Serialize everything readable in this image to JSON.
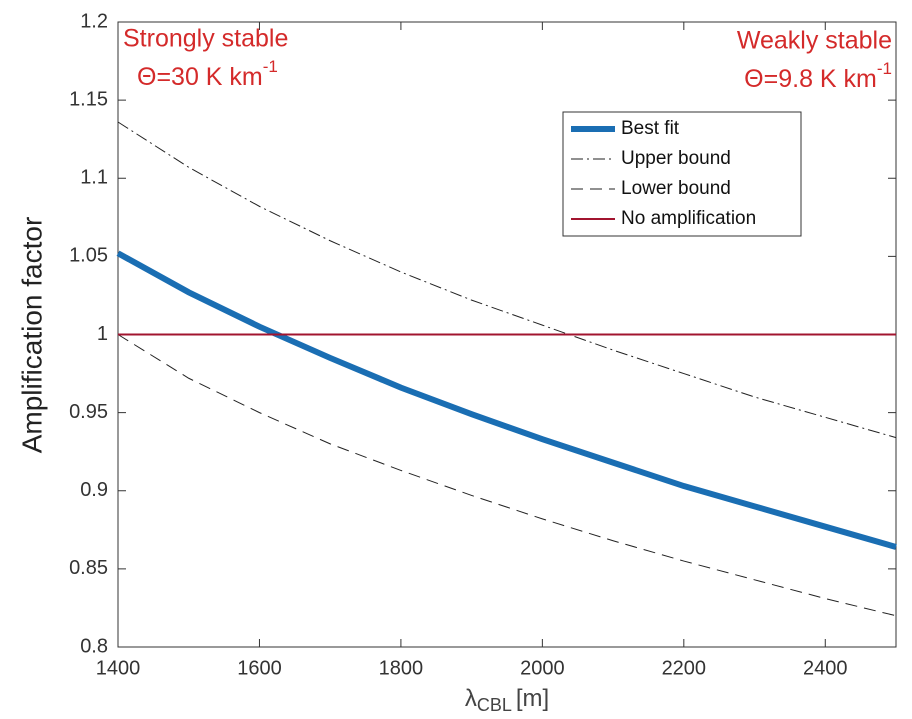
{
  "chart_data": {
    "type": "line",
    "ylabel": "Amplification factor",
    "xlabel": {
      "symbol": "λ",
      "subscript": "CBL",
      "unit": "[m]"
    },
    "annotations": [
      {
        "title": "Strongly stable",
        "text": "Θ=30 K km",
        "superscript": "-1",
        "color": "#d42a2a"
      },
      {
        "title": "Weakly stable",
        "text": "Θ=9.8 K km",
        "superscript": "-1",
        "color": "#d42a2a"
      }
    ],
    "x": [
      1400,
      1500,
      1600,
      1700,
      1800,
      1900,
      2000,
      2100,
      2200,
      2300,
      2400,
      2500
    ],
    "series": [
      {
        "name": "Best fit",
        "color": "#1a6eb3",
        "linestyle": "solid",
        "linewidth": 6,
        "values": [
          1.052,
          1.027,
          1.005,
          0.985,
          0.966,
          0.949,
          0.933,
          0.918,
          0.903,
          0.89,
          0.877,
          0.864
        ]
      },
      {
        "name": "Upper bound",
        "color": "#222222",
        "linestyle": "dashdot",
        "linewidth": 1,
        "values": [
          1.136,
          1.107,
          1.082,
          1.06,
          1.04,
          1.022,
          1.006,
          0.99,
          0.975,
          0.96,
          0.947,
          0.934
        ]
      },
      {
        "name": "Lower bound",
        "color": "#222222",
        "linestyle": "dashed",
        "linewidth": 1,
        "values": [
          1.0,
          0.972,
          0.95,
          0.93,
          0.913,
          0.897,
          0.882,
          0.868,
          0.855,
          0.843,
          0.831,
          0.82
        ]
      },
      {
        "name": "No amplification",
        "color": "#a2142f",
        "linestyle": "solid",
        "linewidth": 2,
        "values": [
          1,
          1,
          1,
          1,
          1,
          1,
          1,
          1,
          1,
          1,
          1,
          1
        ]
      }
    ],
    "xlim": [
      1400,
      2500
    ],
    "ylim": [
      0.8,
      1.2
    ],
    "xticks": [
      1400,
      1600,
      1800,
      2000,
      2200,
      2400
    ],
    "yticks": [
      0.8,
      0.85,
      0.9,
      0.95,
      1,
      1.05,
      1.1,
      1.15,
      1.2
    ],
    "grid": false,
    "legend": "northeast"
  }
}
